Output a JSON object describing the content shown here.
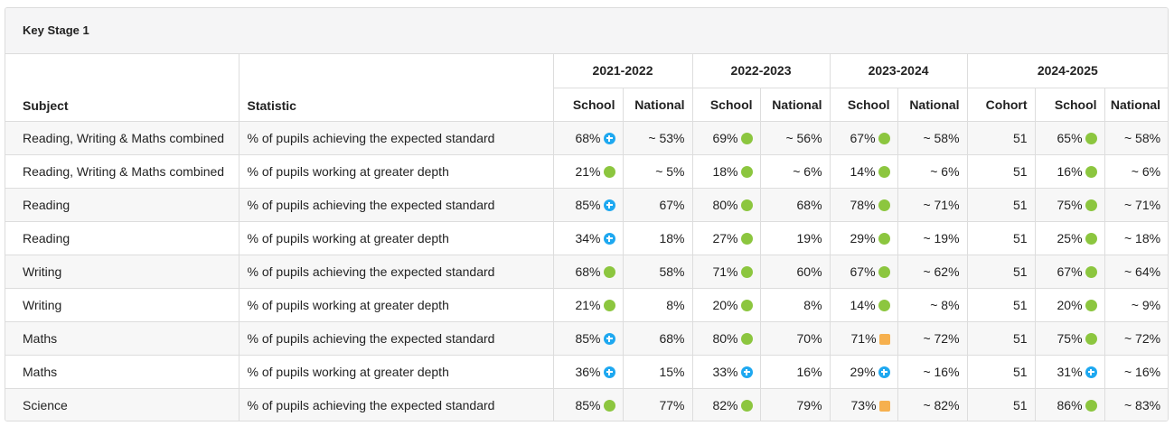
{
  "panel": {
    "title": "Key Stage 1"
  },
  "headers": {
    "subject": "Subject",
    "statistic": "Statistic",
    "years": [
      {
        "label": "2021-2022",
        "cols": [
          "School",
          "National"
        ]
      },
      {
        "label": "2022-2023",
        "cols": [
          "School",
          "National"
        ]
      },
      {
        "label": "2023-2024",
        "cols": [
          "School",
          "National"
        ]
      },
      {
        "label": "2024-2025",
        "cols": [
          "Cohort",
          "School",
          "National"
        ]
      }
    ]
  },
  "indicator_colors": {
    "green": "#8cc63f",
    "blue": "#1ea8f0",
    "amber": "#f6b04e"
  },
  "rows": [
    {
      "subject": "Reading, Writing & Maths combined",
      "statistic": "% of pupils achieving the expected standard",
      "y2122": {
        "school": "68%",
        "ind": "blue",
        "national": "~ 53%"
      },
      "y2223": {
        "school": "69%",
        "ind": "green",
        "national": "~ 56%"
      },
      "y2324": {
        "school": "67%",
        "ind": "green",
        "national": "~ 58%"
      },
      "y2425": {
        "cohort": "51",
        "school": "65%",
        "ind": "green",
        "national": "~ 58%"
      }
    },
    {
      "subject": "Reading, Writing & Maths combined",
      "statistic": "% of pupils working at greater depth",
      "y2122": {
        "school": "21%",
        "ind": "green",
        "national": "~ 5%"
      },
      "y2223": {
        "school": "18%",
        "ind": "green",
        "national": "~ 6%"
      },
      "y2324": {
        "school": "14%",
        "ind": "green",
        "national": "~ 6%"
      },
      "y2425": {
        "cohort": "51",
        "school": "16%",
        "ind": "green",
        "national": "~ 6%"
      }
    },
    {
      "subject": "Reading",
      "statistic": "% of pupils achieving the expected standard",
      "y2122": {
        "school": "85%",
        "ind": "blue",
        "national": "67%"
      },
      "y2223": {
        "school": "80%",
        "ind": "green",
        "national": "68%"
      },
      "y2324": {
        "school": "78%",
        "ind": "green",
        "national": "~ 71%"
      },
      "y2425": {
        "cohort": "51",
        "school": "75%",
        "ind": "green",
        "national": "~ 71%"
      }
    },
    {
      "subject": "Reading",
      "statistic": "% of pupils working at greater depth",
      "y2122": {
        "school": "34%",
        "ind": "blue",
        "national": "18%"
      },
      "y2223": {
        "school": "27%",
        "ind": "green",
        "national": "19%"
      },
      "y2324": {
        "school": "29%",
        "ind": "green",
        "national": "~ 19%"
      },
      "y2425": {
        "cohort": "51",
        "school": "25%",
        "ind": "green",
        "national": "~ 18%"
      }
    },
    {
      "subject": "Writing",
      "statistic": "% of pupils achieving the expected standard",
      "y2122": {
        "school": "68%",
        "ind": "green",
        "national": "58%"
      },
      "y2223": {
        "school": "71%",
        "ind": "green",
        "national": "60%"
      },
      "y2324": {
        "school": "67%",
        "ind": "green",
        "national": "~ 62%"
      },
      "y2425": {
        "cohort": "51",
        "school": "67%",
        "ind": "green",
        "national": "~ 64%"
      }
    },
    {
      "subject": "Writing",
      "statistic": "% of pupils working at greater depth",
      "y2122": {
        "school": "21%",
        "ind": "green",
        "national": "8%"
      },
      "y2223": {
        "school": "20%",
        "ind": "green",
        "national": "8%"
      },
      "y2324": {
        "school": "14%",
        "ind": "green",
        "national": "~ 8%"
      },
      "y2425": {
        "cohort": "51",
        "school": "20%",
        "ind": "green",
        "national": "~ 9%"
      }
    },
    {
      "subject": "Maths",
      "statistic": "% of pupils achieving the expected standard",
      "y2122": {
        "school": "85%",
        "ind": "blue",
        "national": "68%"
      },
      "y2223": {
        "school": "80%",
        "ind": "green",
        "national": "70%"
      },
      "y2324": {
        "school": "71%",
        "ind": "amber",
        "national": "~ 72%"
      },
      "y2425": {
        "cohort": "51",
        "school": "75%",
        "ind": "green",
        "national": "~ 72%"
      }
    },
    {
      "subject": "Maths",
      "statistic": "% of pupils working at greater depth",
      "y2122": {
        "school": "36%",
        "ind": "blue",
        "national": "15%"
      },
      "y2223": {
        "school": "33%",
        "ind": "blue",
        "national": "16%"
      },
      "y2324": {
        "school": "29%",
        "ind": "blue",
        "national": "~ 16%"
      },
      "y2425": {
        "cohort": "51",
        "school": "31%",
        "ind": "blue",
        "national": "~ 16%"
      }
    },
    {
      "subject": "Science",
      "statistic": "% of pupils achieving the expected standard",
      "y2122": {
        "school": "85%",
        "ind": "green",
        "national": "77%"
      },
      "y2223": {
        "school": "82%",
        "ind": "green",
        "national": "79%"
      },
      "y2324": {
        "school": "73%",
        "ind": "amber",
        "national": "~ 82%"
      },
      "y2425": {
        "cohort": "51",
        "school": "86%",
        "ind": "green",
        "national": "~ 83%"
      }
    }
  ]
}
